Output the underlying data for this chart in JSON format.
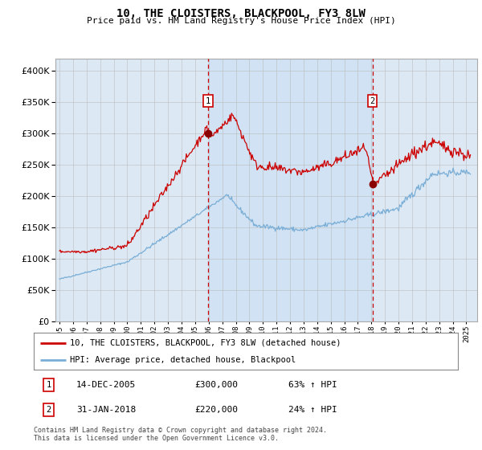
{
  "title": "10, THE CLOISTERS, BLACKPOOL, FY3 8LW",
  "subtitle": "Price paid vs. HM Land Registry's House Price Index (HPI)",
  "legend_line1": "10, THE CLOISTERS, BLACKPOOL, FY3 8LW (detached house)",
  "legend_line2": "HPI: Average price, detached house, Blackpool",
  "annotation1_date": "14-DEC-2005",
  "annotation1_price": "£300,000",
  "annotation1_hpi": "63% ↑ HPI",
  "annotation2_date": "31-JAN-2018",
  "annotation2_price": "£220,000",
  "annotation2_hpi": "24% ↑ HPI",
  "footer": "Contains HM Land Registry data © Crown copyright and database right 2024.\nThis data is licensed under the Open Government Licence v3.0.",
  "red_color": "#cc0000",
  "blue_color": "#7aaed6",
  "bg_color": "#dce9f5",
  "grid_color": "#bbbbbb",
  "sale1_year": 2005.95,
  "sale1_value": 300000,
  "sale2_year": 2018.08,
  "sale2_value": 220000,
  "ylim": [
    0,
    420000
  ],
  "xlim_start": 1994.7,
  "xlim_end": 2025.8
}
